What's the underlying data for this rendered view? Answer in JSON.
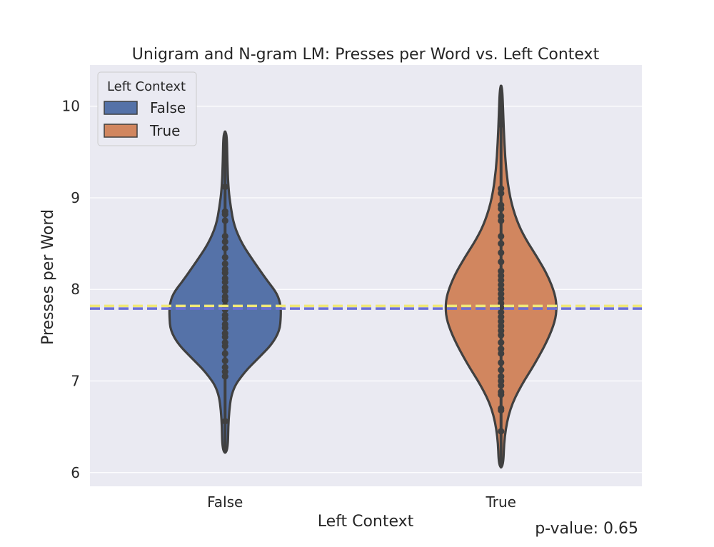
{
  "chart_data": {
    "type": "violin",
    "title": "Unigram and N-gram LM: Presses per Word vs. Left Context",
    "xlabel": "Left Context",
    "ylabel": "Presses per Word",
    "categories": [
      "False",
      "True"
    ],
    "ylim": [
      5.85,
      10.45
    ],
    "yticks": [
      6,
      7,
      8,
      9,
      10
    ],
    "grid": true,
    "legend": {
      "title": "Left Context",
      "placement": "top-left",
      "entries": [
        {
          "label": "False",
          "color": "#5572a8"
        },
        {
          "label": "True",
          "color": "#d1865f"
        }
      ]
    },
    "series": [
      {
        "name": "False",
        "color": "#5572a8",
        "range": [
          6.22,
          9.72
        ],
        "density": [
          [
            6.22,
            0.05
          ],
          [
            6.6,
            0.06
          ],
          [
            6.9,
            0.12
          ],
          [
            7.1,
            0.35
          ],
          [
            7.25,
            0.6
          ],
          [
            7.4,
            0.84
          ],
          [
            7.55,
            0.98
          ],
          [
            7.7,
            1.0
          ],
          [
            7.82,
            1.0
          ],
          [
            7.95,
            0.94
          ],
          [
            8.1,
            0.75
          ],
          [
            8.3,
            0.52
          ],
          [
            8.5,
            0.3
          ],
          [
            8.7,
            0.16
          ],
          [
            8.9,
            0.1
          ],
          [
            9.1,
            0.06
          ],
          [
            9.4,
            0.04
          ],
          [
            9.72,
            0.03
          ]
        ],
        "points": [
          6.56,
          7.05,
          7.1,
          7.15,
          7.22,
          7.3,
          7.38,
          7.42,
          7.48,
          7.52,
          7.58,
          7.62,
          7.68,
          7.72,
          7.78,
          7.82,
          7.88,
          7.92,
          7.98,
          8.02,
          8.08,
          8.12,
          8.18,
          8.22,
          8.28,
          8.35,
          8.45,
          8.52,
          8.58,
          8.75,
          8.82,
          8.85,
          9.12,
          9.38
        ]
      },
      {
        "name": "True",
        "color": "#d1865f",
        "range": [
          6.06,
          10.22
        ],
        "density": [
          [
            6.06,
            0.04
          ],
          [
            6.4,
            0.06
          ],
          [
            6.7,
            0.16
          ],
          [
            6.95,
            0.36
          ],
          [
            7.2,
            0.62
          ],
          [
            7.45,
            0.84
          ],
          [
            7.65,
            0.97
          ],
          [
            7.8,
            1.0
          ],
          [
            7.95,
            0.97
          ],
          [
            8.15,
            0.84
          ],
          [
            8.35,
            0.65
          ],
          [
            8.55,
            0.44
          ],
          [
            8.75,
            0.28
          ],
          [
            9.0,
            0.16
          ],
          [
            9.3,
            0.09
          ],
          [
            9.6,
            0.06
          ],
          [
            9.9,
            0.04
          ],
          [
            10.22,
            0.02
          ]
        ],
        "points": [
          6.45,
          6.68,
          6.7,
          6.85,
          6.88,
          6.95,
          7.0,
          7.05,
          7.12,
          7.2,
          7.3,
          7.35,
          7.42,
          7.5,
          7.55,
          7.6,
          7.65,
          7.7,
          7.75,
          7.8,
          7.85,
          7.9,
          7.95,
          8.0,
          8.05,
          8.1,
          8.15,
          8.2,
          8.3,
          8.4,
          8.5,
          8.58,
          8.75,
          8.8,
          8.88,
          8.92,
          9.05,
          9.1,
          9.8
        ]
      }
    ],
    "reference_lines": [
      {
        "y": 7.82,
        "color": "#f0e878",
        "style": "dashed"
      },
      {
        "y": 7.79,
        "color": "#6b6fd6",
        "style": "dashed"
      }
    ],
    "annotation": "p-value: 0.65"
  }
}
